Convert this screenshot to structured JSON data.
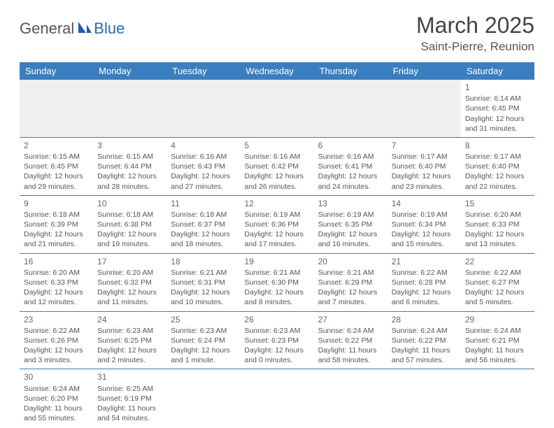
{
  "logo": {
    "part1": "General",
    "part2": "Blue"
  },
  "title": "March 2025",
  "location": "Saint-Pierre, Reunion",
  "colors": {
    "header_bg": "#3a7ebf",
    "header_fg": "#ffffff",
    "row_border": "#3a7ebf",
    "blank_bg": "#f0f0f0",
    "logo_blue": "#2a6bb0",
    "logo_gray": "#555555"
  },
  "weekdays": [
    "Sunday",
    "Monday",
    "Tuesday",
    "Wednesday",
    "Thursday",
    "Friday",
    "Saturday"
  ],
  "weeks": [
    [
      null,
      null,
      null,
      null,
      null,
      null,
      {
        "n": "1",
        "sr": "Sunrise: 6:14 AM",
        "ss": "Sunset: 6:45 PM",
        "dl": "Daylight: 12 hours and 31 minutes."
      }
    ],
    [
      {
        "n": "2",
        "sr": "Sunrise: 6:15 AM",
        "ss": "Sunset: 6:45 PM",
        "dl": "Daylight: 12 hours and 29 minutes."
      },
      {
        "n": "3",
        "sr": "Sunrise: 6:15 AM",
        "ss": "Sunset: 6:44 PM",
        "dl": "Daylight: 12 hours and 28 minutes."
      },
      {
        "n": "4",
        "sr": "Sunrise: 6:16 AM",
        "ss": "Sunset: 6:43 PM",
        "dl": "Daylight: 12 hours and 27 minutes."
      },
      {
        "n": "5",
        "sr": "Sunrise: 6:16 AM",
        "ss": "Sunset: 6:42 PM",
        "dl": "Daylight: 12 hours and 26 minutes."
      },
      {
        "n": "6",
        "sr": "Sunrise: 6:16 AM",
        "ss": "Sunset: 6:41 PM",
        "dl": "Daylight: 12 hours and 24 minutes."
      },
      {
        "n": "7",
        "sr": "Sunrise: 6:17 AM",
        "ss": "Sunset: 6:40 PM",
        "dl": "Daylight: 12 hours and 23 minutes."
      },
      {
        "n": "8",
        "sr": "Sunrise: 6:17 AM",
        "ss": "Sunset: 6:40 PM",
        "dl": "Daylight: 12 hours and 22 minutes."
      }
    ],
    [
      {
        "n": "9",
        "sr": "Sunrise: 6:18 AM",
        "ss": "Sunset: 6:39 PM",
        "dl": "Daylight: 12 hours and 21 minutes."
      },
      {
        "n": "10",
        "sr": "Sunrise: 6:18 AM",
        "ss": "Sunset: 6:38 PM",
        "dl": "Daylight: 12 hours and 19 minutes."
      },
      {
        "n": "11",
        "sr": "Sunrise: 6:18 AM",
        "ss": "Sunset: 6:37 PM",
        "dl": "Daylight: 12 hours and 18 minutes."
      },
      {
        "n": "12",
        "sr": "Sunrise: 6:19 AM",
        "ss": "Sunset: 6:36 PM",
        "dl": "Daylight: 12 hours and 17 minutes."
      },
      {
        "n": "13",
        "sr": "Sunrise: 6:19 AM",
        "ss": "Sunset: 6:35 PM",
        "dl": "Daylight: 12 hours and 16 minutes."
      },
      {
        "n": "14",
        "sr": "Sunrise: 6:19 AM",
        "ss": "Sunset: 6:34 PM",
        "dl": "Daylight: 12 hours and 15 minutes."
      },
      {
        "n": "15",
        "sr": "Sunrise: 6:20 AM",
        "ss": "Sunset: 6:33 PM",
        "dl": "Daylight: 12 hours and 13 minutes."
      }
    ],
    [
      {
        "n": "16",
        "sr": "Sunrise: 6:20 AM",
        "ss": "Sunset: 6:33 PM",
        "dl": "Daylight: 12 hours and 12 minutes."
      },
      {
        "n": "17",
        "sr": "Sunrise: 6:20 AM",
        "ss": "Sunset: 6:32 PM",
        "dl": "Daylight: 12 hours and 11 minutes."
      },
      {
        "n": "18",
        "sr": "Sunrise: 6:21 AM",
        "ss": "Sunset: 6:31 PM",
        "dl": "Daylight: 12 hours and 10 minutes."
      },
      {
        "n": "19",
        "sr": "Sunrise: 6:21 AM",
        "ss": "Sunset: 6:30 PM",
        "dl": "Daylight: 12 hours and 8 minutes."
      },
      {
        "n": "20",
        "sr": "Sunrise: 6:21 AM",
        "ss": "Sunset: 6:29 PM",
        "dl": "Daylight: 12 hours and 7 minutes."
      },
      {
        "n": "21",
        "sr": "Sunrise: 6:22 AM",
        "ss": "Sunset: 6:28 PM",
        "dl": "Daylight: 12 hours and 6 minutes."
      },
      {
        "n": "22",
        "sr": "Sunrise: 6:22 AM",
        "ss": "Sunset: 6:27 PM",
        "dl": "Daylight: 12 hours and 5 minutes."
      }
    ],
    [
      {
        "n": "23",
        "sr": "Sunrise: 6:22 AM",
        "ss": "Sunset: 6:26 PM",
        "dl": "Daylight: 12 hours and 3 minutes."
      },
      {
        "n": "24",
        "sr": "Sunrise: 6:23 AM",
        "ss": "Sunset: 6:25 PM",
        "dl": "Daylight: 12 hours and 2 minutes."
      },
      {
        "n": "25",
        "sr": "Sunrise: 6:23 AM",
        "ss": "Sunset: 6:24 PM",
        "dl": "Daylight: 12 hours and 1 minute."
      },
      {
        "n": "26",
        "sr": "Sunrise: 6:23 AM",
        "ss": "Sunset: 6:23 PM",
        "dl": "Daylight: 12 hours and 0 minutes."
      },
      {
        "n": "27",
        "sr": "Sunrise: 6:24 AM",
        "ss": "Sunset: 6:22 PM",
        "dl": "Daylight: 11 hours and 58 minutes."
      },
      {
        "n": "28",
        "sr": "Sunrise: 6:24 AM",
        "ss": "Sunset: 6:22 PM",
        "dl": "Daylight: 11 hours and 57 minutes."
      },
      {
        "n": "29",
        "sr": "Sunrise: 6:24 AM",
        "ss": "Sunset: 6:21 PM",
        "dl": "Daylight: 11 hours and 56 minutes."
      }
    ],
    [
      {
        "n": "30",
        "sr": "Sunrise: 6:24 AM",
        "ss": "Sunset: 6:20 PM",
        "dl": "Daylight: 11 hours and 55 minutes."
      },
      {
        "n": "31",
        "sr": "Sunrise: 6:25 AM",
        "ss": "Sunset: 6:19 PM",
        "dl": "Daylight: 11 hours and 54 minutes."
      },
      null,
      null,
      null,
      null,
      null
    ]
  ]
}
